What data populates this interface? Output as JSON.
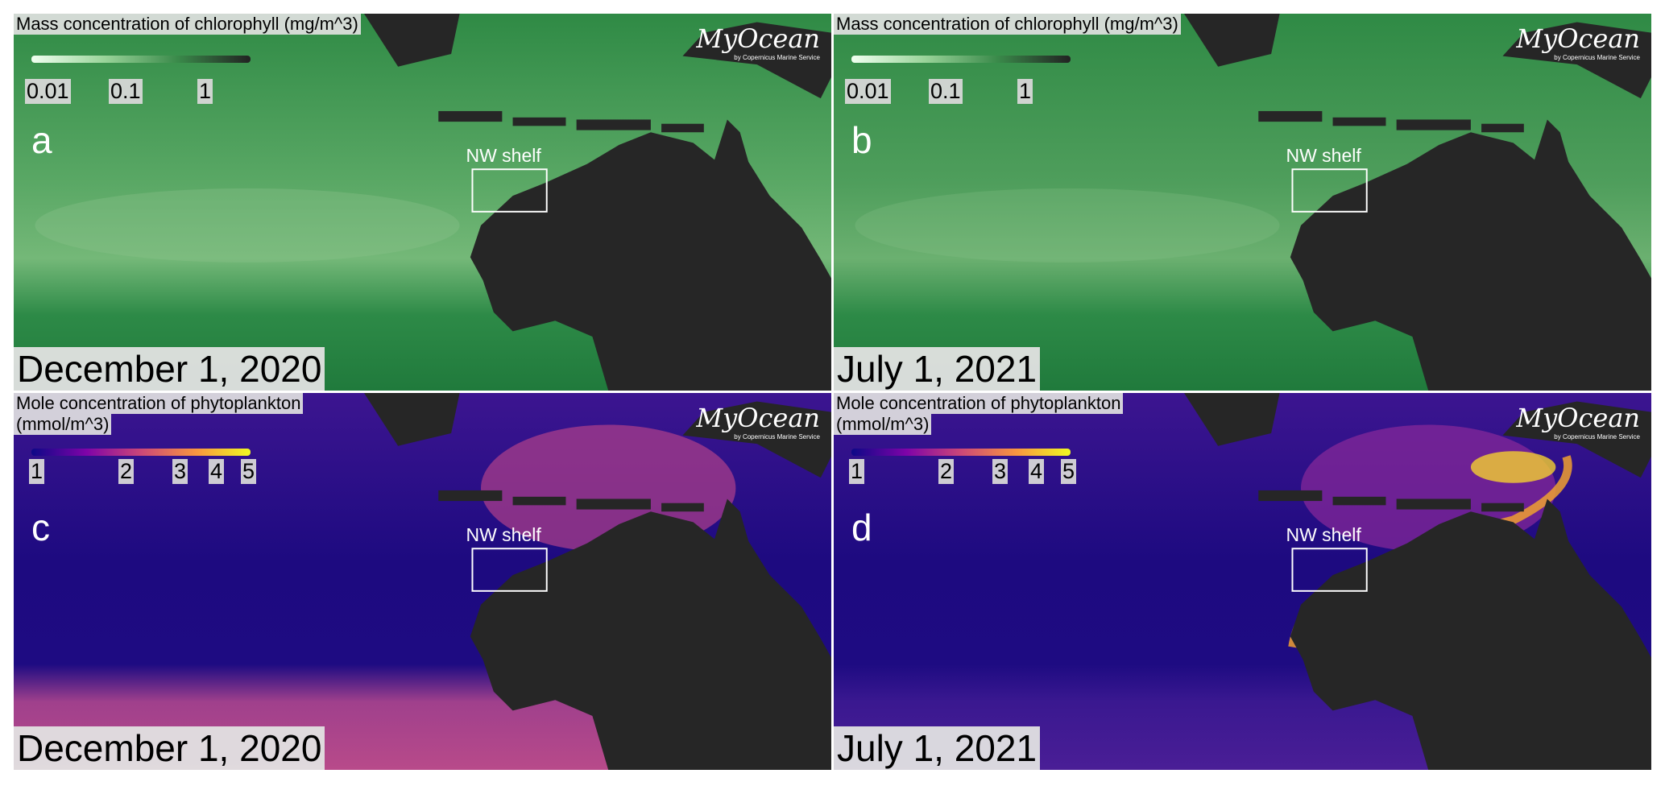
{
  "panels": [
    {
      "letter": "a",
      "title": [
        "Mass concentration of chlorophyll (mg/m^3)"
      ],
      "scale_labels": [
        "0.01",
        "0.1",
        "1"
      ],
      "date": "December 1, 2020",
      "region": "NW shelf",
      "logo": "MyOcean",
      "logo_sub": "by Copernicus Marine Service"
    },
    {
      "letter": "b",
      "title": [
        "Mass concentration of chlorophyll (mg/m^3)"
      ],
      "scale_labels": [
        "0.01",
        "0.1",
        "1"
      ],
      "date": "July 1, 2021",
      "region": "NW shelf",
      "logo": "MyOcean",
      "logo_sub": "by Copernicus Marine Service"
    },
    {
      "letter": "c",
      "title": [
        "Mole concentration of phytoplankton",
        "(mmol/m^3)"
      ],
      "scale_labels": [
        "1",
        "2",
        "3",
        "4",
        "5"
      ],
      "date": "December 1, 2020",
      "region": "NW shelf",
      "logo": "MyOcean",
      "logo_sub": "by Copernicus Marine Service"
    },
    {
      "letter": "d",
      "title": [
        "Mole concentration of phytoplankton",
        "(mmol/m^3)"
      ],
      "scale_labels": [
        "1",
        "2",
        "3",
        "4",
        "5"
      ],
      "date": "July 1, 2021",
      "region": "NW shelf",
      "logo": "MyOcean",
      "logo_sub": "by Copernicus Marine Service"
    }
  ]
}
